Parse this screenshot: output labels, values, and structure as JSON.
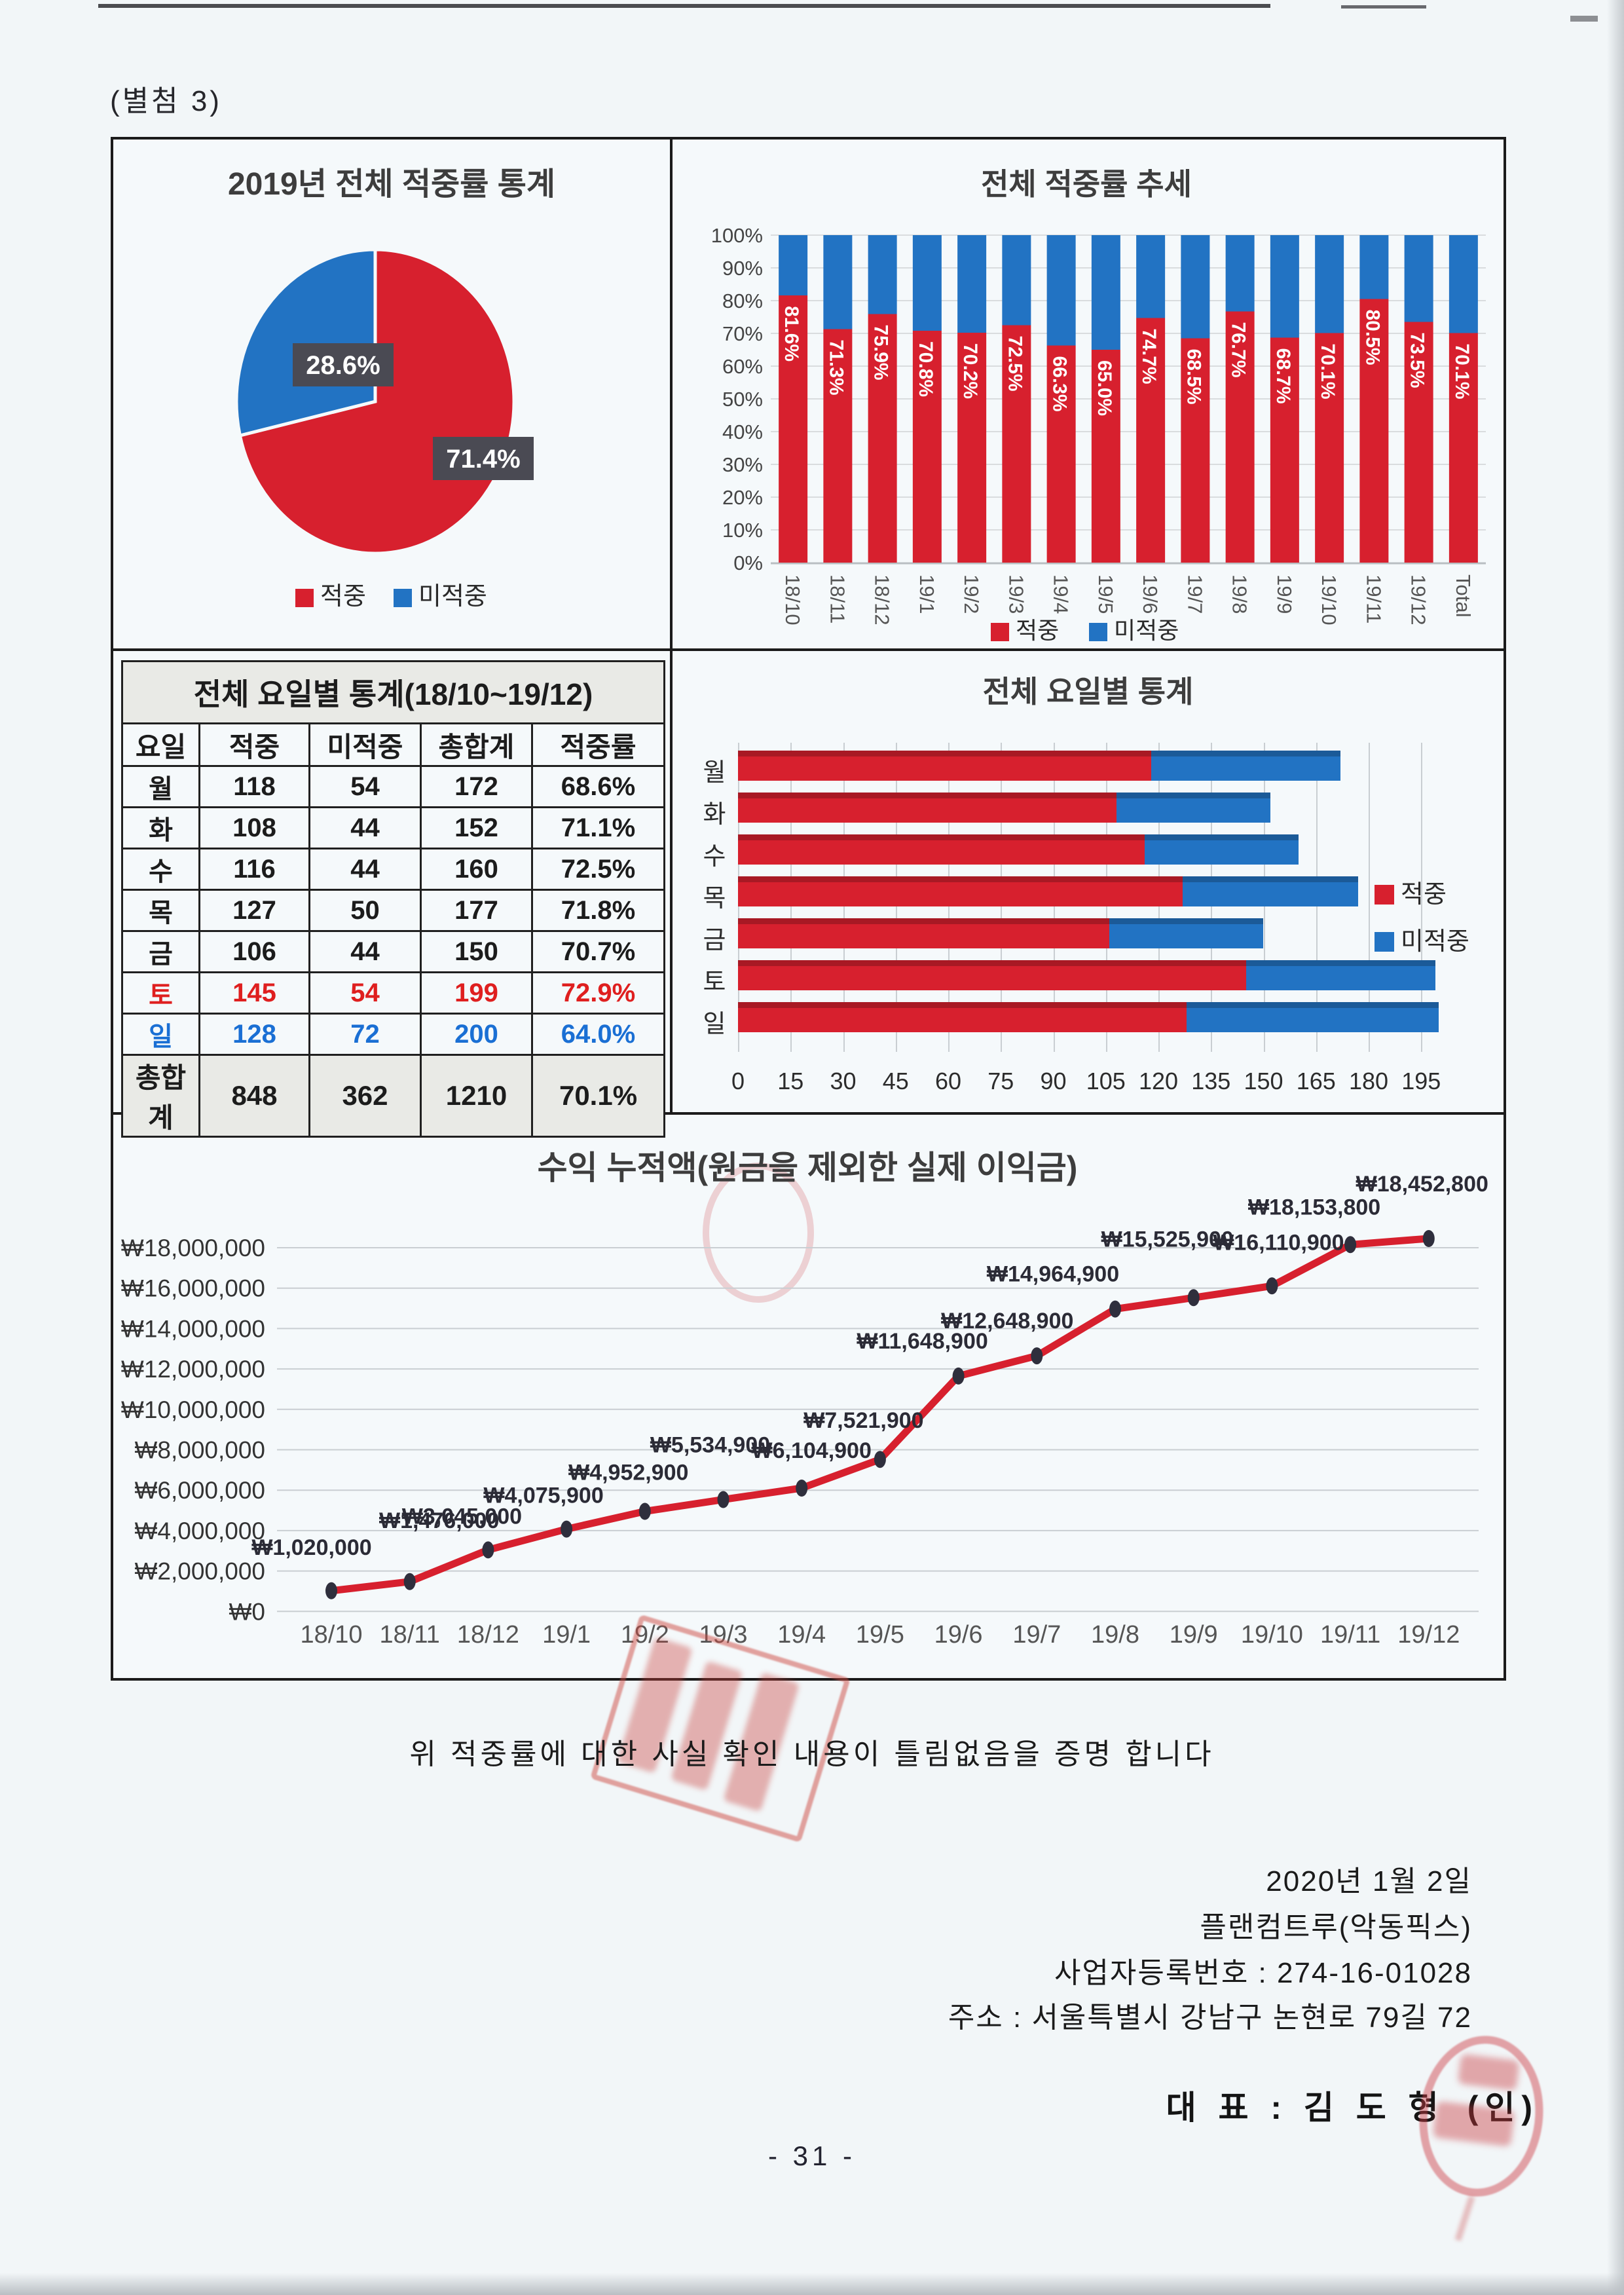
{
  "page": {
    "attachment_label": "(별첨 3)",
    "page_number": "- 31 -"
  },
  "certification": {
    "text": "위 적중률에 대한 사실 확인 내용이 틀림없음을 증명 합니다"
  },
  "signoff": {
    "date": "2020년 1월 2일",
    "company": "플랜컴트루(악동픽스)",
    "registration": "사업자등록번호 : 274-16-01028",
    "address": "주소 : 서울특별시 강남구 논현로 79길 72",
    "representative": "대 표 : 김 도 형",
    "seal": "(인)"
  },
  "colors": {
    "hit_red": "#d7202e",
    "miss_blue": "#2273c3",
    "label_box": "#4a4a53",
    "sat_red": "#df1f1f",
    "sun_blue": "#1a6fd4",
    "stamp_red": "#ce4942"
  },
  "chart_data": [
    {
      "type": "pie",
      "title": "2019년 전체 적중률 통계",
      "slices": [
        {
          "label": "적중",
          "value": 71.4,
          "display": "71.4%",
          "color": "#d7202e"
        },
        {
          "label": "미적중",
          "value": 28.6,
          "display": "28.6%",
          "color": "#2273c3"
        }
      ],
      "legend": [
        "적중",
        "미적중"
      ]
    },
    {
      "type": "bar",
      "subtype": "stacked-percent-column",
      "title": "전체 적중률 추세",
      "categories": [
        "18/10",
        "18/11",
        "18/12",
        "19/1",
        "19/2",
        "19/3",
        "19/4",
        "19/5",
        "19/6",
        "19/7",
        "19/8",
        "19/9",
        "19/10",
        "19/11",
        "19/12",
        "Total"
      ],
      "series": [
        {
          "name": "적중",
          "color": "#d7202e",
          "values": [
            81.6,
            71.3,
            75.9,
            70.8,
            70.2,
            72.5,
            66.3,
            65.0,
            74.7,
            68.5,
            76.7,
            68.7,
            70.1,
            80.5,
            73.5,
            70.1
          ]
        },
        {
          "name": "미적중",
          "color": "#2273c3",
          "values": [
            18.4,
            28.7,
            24.1,
            29.2,
            29.8,
            27.5,
            33.7,
            35.0,
            25.3,
            31.5,
            23.3,
            31.3,
            29.9,
            19.5,
            26.5,
            29.9
          ]
        }
      ],
      "bar_labels": [
        "81.6%",
        "71.3%",
        "75.9%",
        "70.8%",
        "70.2%",
        "72.5%",
        "66.3%",
        "65.0%",
        "74.7%",
        "68.5%",
        "76.7%",
        "68.7%",
        "70.1%",
        "80.5%",
        "73.5%",
        "70.1%"
      ],
      "y_ticks": [
        "0%",
        "10%",
        "20%",
        "30%",
        "40%",
        "50%",
        "60%",
        "70%",
        "80%",
        "90%",
        "100%"
      ],
      "ylim": [
        0,
        100
      ],
      "legend": [
        "적중",
        "미적중"
      ]
    },
    {
      "type": "table",
      "title": "전체 요일별 통계(18/10~19/12)",
      "headers": [
        "요일",
        "적중",
        "미적중",
        "총합계",
        "적중률"
      ],
      "rows": [
        [
          "월",
          "118",
          "54",
          "172",
          "68.6%"
        ],
        [
          "화",
          "108",
          "44",
          "152",
          "71.1%"
        ],
        [
          "수",
          "116",
          "44",
          "160",
          "72.5%"
        ],
        [
          "목",
          "127",
          "50",
          "177",
          "71.8%"
        ],
        [
          "금",
          "106",
          "44",
          "150",
          "70.7%"
        ],
        [
          "토",
          "145",
          "54",
          "199",
          "72.9%"
        ],
        [
          "일",
          "128",
          "72",
          "200",
          "64.0%"
        ],
        [
          "총합계",
          "848",
          "362",
          "1210",
          "70.1%"
        ]
      ]
    },
    {
      "type": "bar",
      "subtype": "stacked-horizontal",
      "title": "전체 요일별 통계",
      "categories": [
        "월",
        "화",
        "수",
        "목",
        "금",
        "토",
        "일"
      ],
      "series": [
        {
          "name": "적중",
          "color": "#d7202e",
          "values": [
            118,
            108,
            116,
            127,
            106,
            145,
            128
          ]
        },
        {
          "name": "미적중",
          "color": "#2273c3",
          "values": [
            54,
            44,
            44,
            50,
            44,
            54,
            72
          ]
        }
      ],
      "x_ticks": [
        0,
        15,
        30,
        45,
        60,
        75,
        90,
        105,
        120,
        135,
        150,
        165,
        180,
        195
      ],
      "xlim": [
        0,
        200
      ],
      "legend": [
        "적중",
        "미적중"
      ]
    },
    {
      "type": "line",
      "title": "수익 누적액(원금을 제외한 실제 이익금)",
      "x": [
        "18/10",
        "18/11",
        "18/12",
        "19/1",
        "19/2",
        "19/3",
        "19/4",
        "19/5",
        "19/6",
        "19/7",
        "19/8",
        "19/9",
        "19/10",
        "19/11",
        "19/12"
      ],
      "values": [
        1020000,
        1476000,
        3045000,
        4075900,
        4952900,
        5534900,
        6104900,
        7521900,
        11648900,
        12648900,
        14964900,
        15525900,
        16110900,
        18153800,
        18452800
      ],
      "point_labels": [
        "₩1,020,000",
        "₩1,476,000",
        "₩3,045,000",
        "₩4,075,900",
        "₩4,952,900",
        "₩5,534,900",
        "₩6,104,900",
        "₩7,521,900",
        "₩11,648,900",
        "₩12,648,900",
        "₩14,964,900",
        "₩15,525,900",
        "₩16,110,900",
        "₩18,153,800",
        "₩18,452,800"
      ],
      "y_ticks": [
        "₩18,000,000",
        "₩16,000,000",
        "₩14,000,000",
        "₩12,000,000",
        "₩10,000,000",
        "₩8,000,000",
        "₩6,000,000",
        "₩4,000,000",
        "₩2,000,000",
        "₩0"
      ],
      "ylim": [
        0,
        18000000
      ],
      "line_color": "#d7202e",
      "marker_color": "#2f2f3d"
    }
  ]
}
